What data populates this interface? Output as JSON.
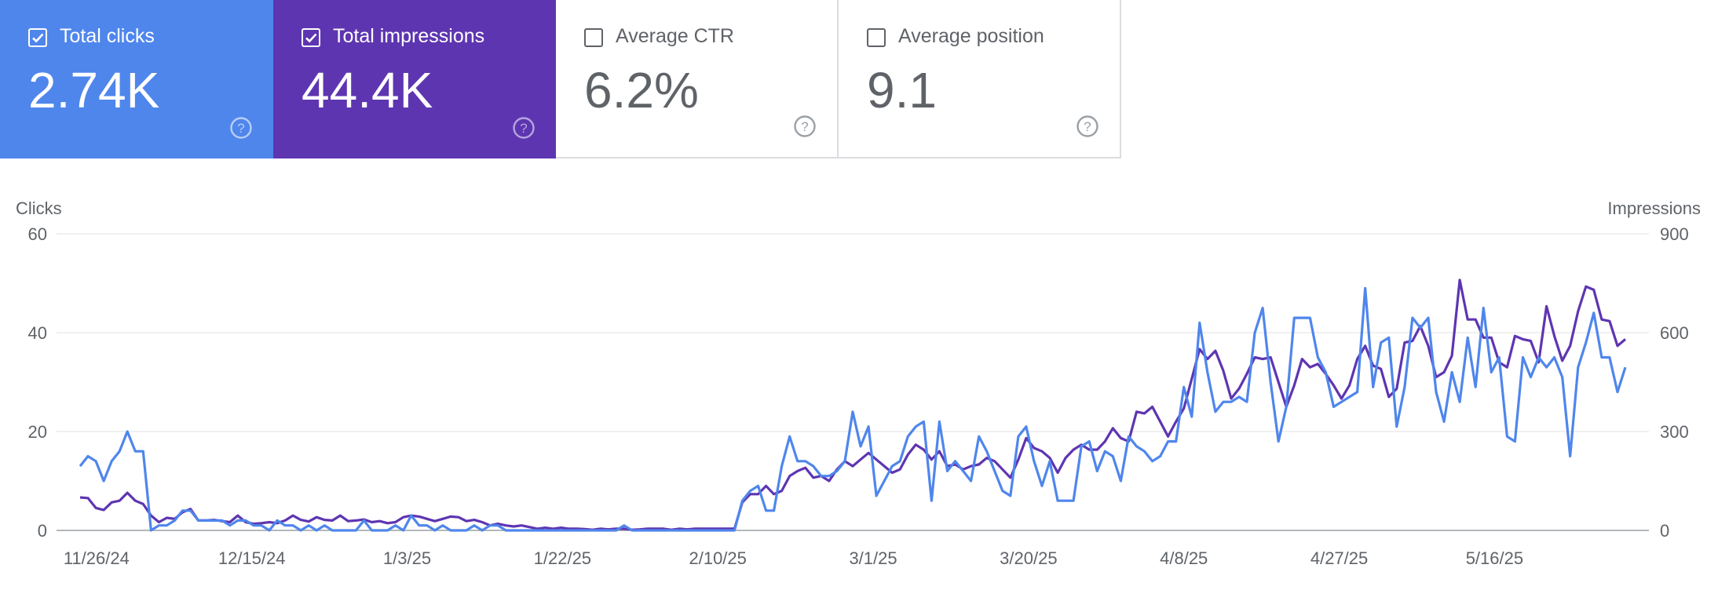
{
  "cards": [
    {
      "key": "clicks",
      "label": "Total clicks",
      "value": "2.74K",
      "selected": true,
      "color": "#4f86ec"
    },
    {
      "key": "impressions",
      "label": "Total impressions",
      "value": "44.4K",
      "selected": true,
      "color": "#5e35b1"
    },
    {
      "key": "ctr",
      "label": "Average CTR",
      "value": "6.2%",
      "selected": false
    },
    {
      "key": "position",
      "label": "Average position",
      "value": "9.1",
      "selected": false
    }
  ],
  "chart_data": {
    "type": "line",
    "ylabel_left": "Clicks",
    "ylabel_right": "Impressions",
    "yticks_left": [
      "0",
      "20",
      "40",
      "60"
    ],
    "yticks_right": [
      "0",
      "300",
      "600",
      "900"
    ],
    "ylim_left": [
      0,
      60
    ],
    "ylim_right": [
      0,
      900
    ],
    "grid": true,
    "x_tick_labels": [
      "11/26/24",
      "12/15/24",
      "1/3/25",
      "1/22/25",
      "2/10/25",
      "3/1/25",
      "3/20/25",
      "4/8/25",
      "4/27/25",
      "5/16/25"
    ],
    "x_start": "2024-11-24",
    "x_end": "2025-06-01",
    "series": [
      {
        "name": "Clicks",
        "axis": "left",
        "color": "#4f86ec",
        "values": [
          13,
          15,
          14,
          10,
          14,
          16,
          20,
          16,
          16,
          0,
          1,
          1,
          2,
          4,
          4,
          2,
          2,
          2,
          2,
          1,
          2,
          2,
          1,
          1,
          0,
          2,
          1,
          1,
          0,
          1,
          0,
          1,
          0,
          0,
          0,
          0,
          2,
          0,
          0,
          0,
          1,
          0,
          3,
          1,
          1,
          0,
          1,
          0,
          0,
          0,
          1,
          0,
          1,
          1,
          0,
          0,
          0,
          0,
          0,
          0,
          0,
          0,
          0,
          0,
          0,
          0,
          0,
          0,
          0,
          1,
          0,
          0,
          0,
          0,
          0,
          0,
          0,
          0,
          0,
          0,
          0,
          0,
          0,
          0,
          6,
          8,
          9,
          4,
          4,
          13,
          19,
          14,
          14,
          13,
          11,
          11,
          12,
          14,
          24,
          17,
          21,
          7,
          10,
          13,
          14,
          19,
          21,
          22,
          6,
          22,
          12,
          14,
          12,
          10,
          19,
          16,
          12,
          8,
          7,
          19,
          21,
          14,
          9,
          14,
          6,
          6,
          6,
          17,
          18,
          12,
          16,
          15,
          10,
          19,
          17,
          16,
          14,
          15,
          18,
          18,
          29,
          23,
          42,
          32,
          24,
          26,
          26,
          27,
          26,
          40,
          45,
          30,
          18,
          25,
          43,
          43,
          43,
          35,
          32,
          25,
          26,
          27,
          28,
          49,
          29,
          38,
          39,
          21,
          29,
          43,
          41,
          43,
          28,
          22,
          32,
          26,
          39,
          29,
          45,
          32,
          35,
          19,
          18,
          35,
          31,
          35,
          33,
          35,
          31,
          15,
          33,
          38,
          44,
          35,
          35,
          28,
          33
        ]
      },
      {
        "name": "Impressions",
        "axis": "right",
        "color": "#5e35b1",
        "values": [
          100,
          98,
          68,
          62,
          85,
          90,
          114,
          90,
          80,
          45,
          25,
          38,
          35,
          55,
          65,
          30,
          30,
          32,
          28,
          25,
          45,
          25,
          20,
          22,
          25,
          22,
          30,
          45,
          32,
          27,
          40,
          32,
          30,
          45,
          28,
          30,
          33,
          25,
          28,
          22,
          25,
          40,
          45,
          42,
          35,
          28,
          35,
          42,
          40,
          28,
          32,
          25,
          15,
          20,
          15,
          12,
          15,
          10,
          5,
          8,
          5,
          8,
          5,
          5,
          4,
          2,
          5,
          3,
          5,
          5,
          2,
          3,
          5,
          5,
          5,
          2,
          5,
          3,
          5,
          5,
          5,
          5,
          5,
          5,
          85,
          110,
          110,
          135,
          110,
          120,
          165,
          180,
          190,
          160,
          165,
          150,
          185,
          210,
          195,
          215,
          235,
          215,
          195,
          175,
          185,
          230,
          260,
          245,
          215,
          240,
          195,
          200,
          185,
          195,
          200,
          220,
          210,
          185,
          160,
          215,
          280,
          250,
          240,
          220,
          175,
          220,
          245,
          260,
          245,
          245,
          270,
          310,
          280,
          270,
          360,
          355,
          375,
          330,
          285,
          330,
          370,
          460,
          550,
          520,
          545,
          485,
          400,
          430,
          475,
          525,
          520,
          525,
          450,
          375,
          440,
          520,
          495,
          505,
          475,
          440,
          400,
          440,
          520,
          560,
          500,
          490,
          405,
          430,
          570,
          575,
          620,
          560,
          465,
          480,
          530,
          760,
          640,
          640,
          585,
          585,
          510,
          495,
          590,
          580,
          575,
          510,
          680,
          590,
          515,
          560,
          665,
          740,
          730,
          640,
          635,
          560,
          580
        ]
      }
    ]
  }
}
